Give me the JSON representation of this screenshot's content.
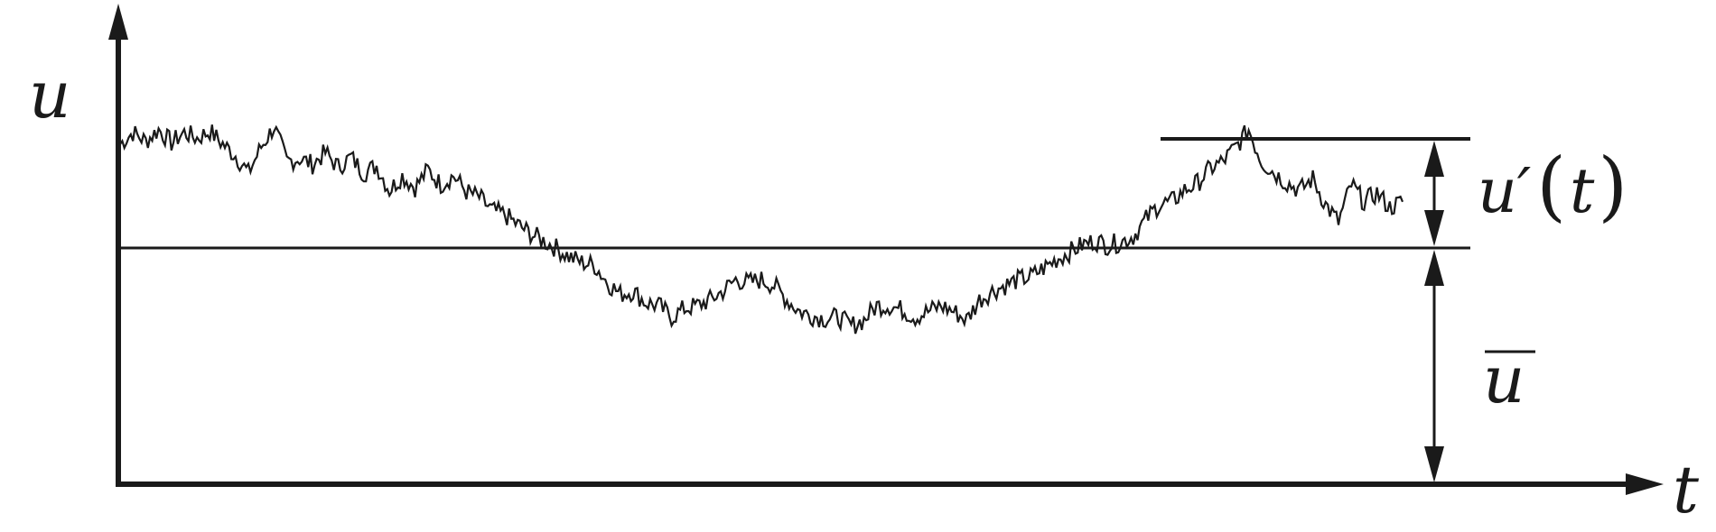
{
  "labels": {
    "y_axis": "u",
    "x_axis": "t",
    "fluctuation_symbol": "u′",
    "fluctuation_open": "(",
    "fluctuation_arg": "t",
    "fluctuation_close": ")",
    "mean_symbol": "u"
  },
  "colors": {
    "ink": "#1a1a1a",
    "background": "#ffffff"
  },
  "signal": {
    "description_points": [
      [
        0.0,
        0.72
      ],
      [
        0.01,
        0.8
      ],
      [
        0.02,
        0.74
      ],
      [
        0.03,
        0.82
      ],
      [
        0.04,
        0.73
      ],
      [
        0.05,
        0.8
      ],
      [
        0.06,
        0.76
      ],
      [
        0.07,
        0.81
      ],
      [
        0.08,
        0.72
      ],
      [
        0.09,
        0.64
      ],
      [
        0.1,
        0.52
      ],
      [
        0.11,
        0.7
      ],
      [
        0.12,
        0.84
      ],
      [
        0.13,
        0.6
      ],
      [
        0.14,
        0.62
      ],
      [
        0.15,
        0.58
      ],
      [
        0.16,
        0.66
      ],
      [
        0.17,
        0.56
      ],
      [
        0.18,
        0.63
      ],
      [
        0.19,
        0.52
      ],
      [
        0.2,
        0.57
      ],
      [
        0.21,
        0.4
      ],
      [
        0.22,
        0.5
      ],
      [
        0.23,
        0.42
      ],
      [
        0.24,
        0.54
      ],
      [
        0.25,
        0.44
      ],
      [
        0.26,
        0.5
      ],
      [
        0.27,
        0.39
      ],
      [
        0.28,
        0.35
      ],
      [
        0.29,
        0.26
      ],
      [
        0.3,
        0.23
      ],
      [
        0.31,
        0.16
      ],
      [
        0.32,
        0.1
      ],
      [
        0.33,
        0.05
      ],
      [
        0.34,
        0.0
      ],
      [
        0.35,
        -0.06
      ],
      [
        0.36,
        -0.1
      ],
      [
        0.37,
        -0.12
      ],
      [
        0.38,
        -0.24
      ],
      [
        0.39,
        -0.32
      ],
      [
        0.4,
        -0.3
      ],
      [
        0.41,
        -0.38
      ],
      [
        0.42,
        -0.4
      ],
      [
        0.43,
        -0.48
      ],
      [
        0.44,
        -0.42
      ],
      [
        0.45,
        -0.4
      ],
      [
        0.46,
        -0.36
      ],
      [
        0.47,
        -0.3
      ],
      [
        0.48,
        -0.22
      ],
      [
        0.49,
        -0.24
      ],
      [
        0.5,
        -0.22
      ],
      [
        0.51,
        -0.26
      ],
      [
        0.52,
        -0.36
      ],
      [
        0.53,
        -0.44
      ],
      [
        0.54,
        -0.47
      ],
      [
        0.55,
        -0.49
      ],
      [
        0.56,
        -0.48
      ],
      [
        0.57,
        -0.54
      ],
      [
        0.58,
        -0.5
      ],
      [
        0.59,
        -0.4
      ],
      [
        0.6,
        -0.4
      ],
      [
        0.61,
        -0.43
      ],
      [
        0.62,
        -0.48
      ],
      [
        0.63,
        -0.44
      ],
      [
        0.64,
        -0.4
      ],
      [
        0.65,
        -0.44
      ],
      [
        0.66,
        -0.5
      ],
      [
        0.67,
        -0.36
      ],
      [
        0.68,
        -0.3
      ],
      [
        0.69,
        -0.26
      ],
      [
        0.7,
        -0.22
      ],
      [
        0.71,
        -0.2
      ],
      [
        0.72,
        -0.14
      ],
      [
        0.73,
        -0.08
      ],
      [
        0.74,
        -0.03
      ],
      [
        0.75,
        0.02
      ],
      [
        0.76,
        0.05
      ],
      [
        0.77,
        0.02
      ],
      [
        0.78,
        0.04
      ],
      [
        0.79,
        0.08
      ],
      [
        0.8,
        0.2
      ],
      [
        0.81,
        0.3
      ],
      [
        0.82,
        0.32
      ],
      [
        0.83,
        0.4
      ],
      [
        0.84,
        0.45
      ],
      [
        0.85,
        0.55
      ],
      [
        0.86,
        0.6
      ],
      [
        0.87,
        0.7
      ],
      [
        0.88,
        0.82
      ],
      [
        0.89,
        0.6
      ],
      [
        0.9,
        0.52
      ],
      [
        0.91,
        0.45
      ],
      [
        0.92,
        0.4
      ],
      [
        0.93,
        0.48
      ],
      [
        0.94,
        0.3
      ],
      [
        0.95,
        0.18
      ],
      [
        0.96,
        0.44
      ],
      [
        0.97,
        0.32
      ],
      [
        0.98,
        0.38
      ],
      [
        0.99,
        0.28
      ],
      [
        1.0,
        0.32
      ]
    ]
  }
}
